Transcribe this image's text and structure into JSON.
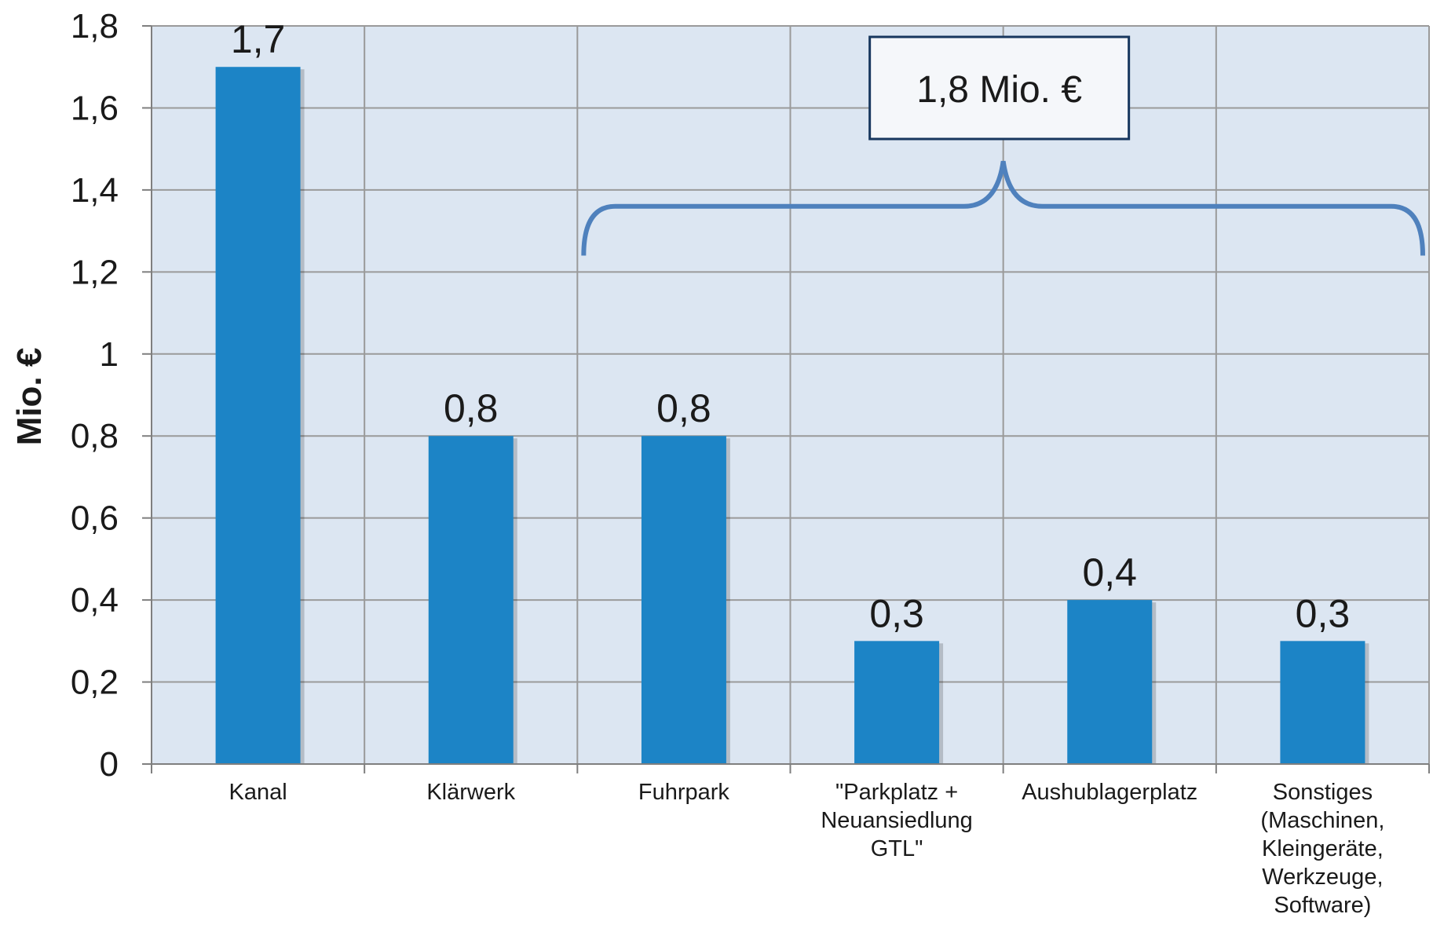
{
  "chart_data": {
    "type": "bar",
    "title": "",
    "xlabel": "",
    "ylabel": "Mio. €",
    "ylim": [
      0,
      1.8
    ],
    "yticks": [
      "0",
      "0,2",
      "0,4",
      "0,6",
      "0,8",
      "1",
      "1,2",
      "1,4",
      "1,6",
      "1,8"
    ],
    "grid": true,
    "categories": [
      [
        "Kanal"
      ],
      [
        "Klärwerk"
      ],
      [
        "Fuhrpark"
      ],
      [
        "\"Parkplatz +",
        "Neuansiedlung",
        "GTL\""
      ],
      [
        "Aushublagerplatz"
      ],
      [
        "Sonstiges",
        "(Maschinen,",
        "Kleingeräte,",
        "Werkzeuge,",
        "Software)"
      ]
    ],
    "values": [
      1.7,
      0.8,
      0.8,
      0.3,
      0.4,
      0.3
    ],
    "value_labels": [
      "1,7",
      "0,8",
      "0,8",
      "0,3",
      "0,4",
      "0,3"
    ],
    "annotation": {
      "text": "1,8 Mio. €",
      "brace_from_category": 2,
      "brace_to_category": 5
    }
  },
  "colors": {
    "bar": "#1c84c6",
    "plot_background": "#dce6f2",
    "grid": "#9a9a9a",
    "brace": "#4f81bd",
    "callout_border": "#17375e"
  }
}
